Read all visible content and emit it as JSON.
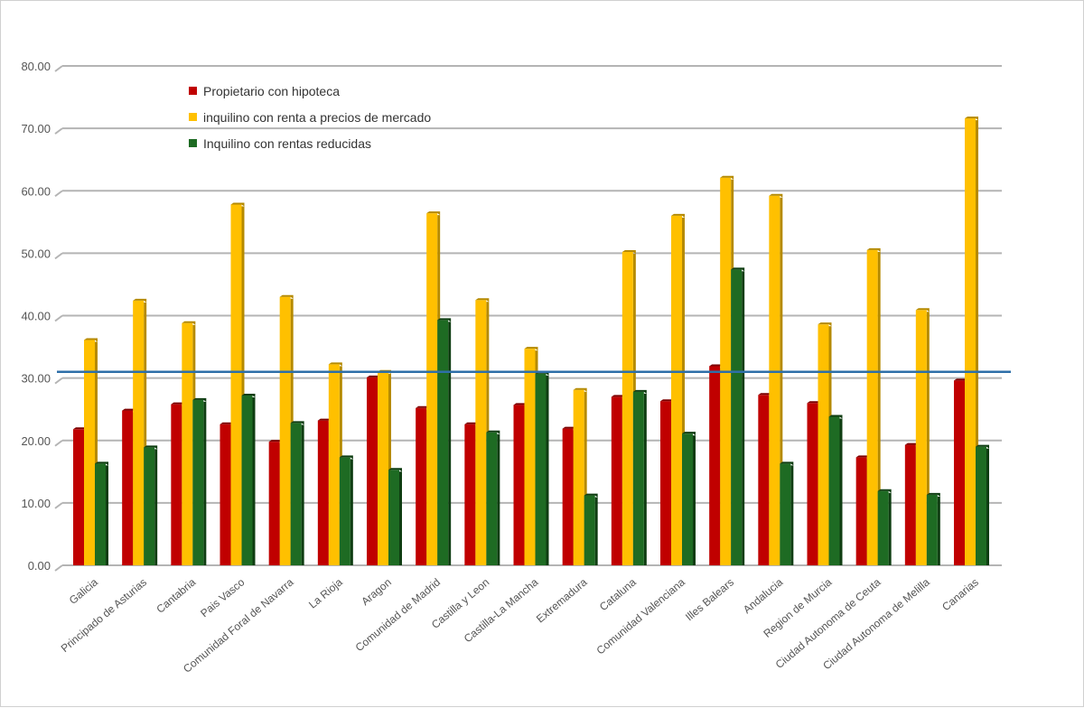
{
  "chart_data": {
    "type": "bar",
    "title": "",
    "xlabel": "",
    "ylabel": "",
    "ylim": [
      0,
      80
    ],
    "yticks": [
      "0.00",
      "10.00",
      "20.00",
      "30.00",
      "40.00",
      "50.00",
      "60.00",
      "70.00",
      "80.00"
    ],
    "grid": true,
    "legend_position": "top-left",
    "categories": [
      "Galicia",
      "Principado de Asturias",
      "Cantabria",
      "Pais Vasco",
      "Comunidad Foral de Navarra",
      "La Rioja",
      "Aragon",
      "Comunidad de Madrid",
      "Castilla y Leon",
      "Castilla-La Mancha",
      "Extremadura",
      "Cataluna",
      "Comunidad Valenciana",
      "Illes Balears",
      "Andalucia",
      "Region de Murcia",
      "Ciudad Autonoma de Ceuta",
      "Ciudad Autonoma de Melilla",
      "Canarias"
    ],
    "series": [
      {
        "name": "Propietario con hipoteca",
        "color": "#c00000",
        "values": [
          21.8,
          24.8,
          25.8,
          22.6,
          19.8,
          23.2,
          30.1,
          25.2,
          22.6,
          25.7,
          21.9,
          27.0,
          26.3,
          31.9,
          27.3,
          26.0,
          17.3,
          19.3,
          29.6
        ]
      },
      {
        "name": "inquilino con renta a precios de mercado",
        "color": "#ffc000",
        "values": [
          36.1,
          42.4,
          38.8,
          57.8,
          43.0,
          32.2,
          31.0,
          56.4,
          42.5,
          34.7,
          28.1,
          50.2,
          56.0,
          62.1,
          59.2,
          38.6,
          50.5,
          40.9,
          71.6
        ]
      },
      {
        "name": "Inquilino con rentas reducidas",
        "color": "#1e6b23",
        "values": [
          16.3,
          18.9,
          26.5,
          27.2,
          22.8,
          17.3,
          15.3,
          39.3,
          21.3,
          30.7,
          11.2,
          27.8,
          21.1,
          47.4,
          16.3,
          23.8,
          11.9,
          11.3,
          19.0
        ]
      }
    ],
    "reference_line": {
      "value": 31.0,
      "color": "#2e6fa8"
    }
  }
}
